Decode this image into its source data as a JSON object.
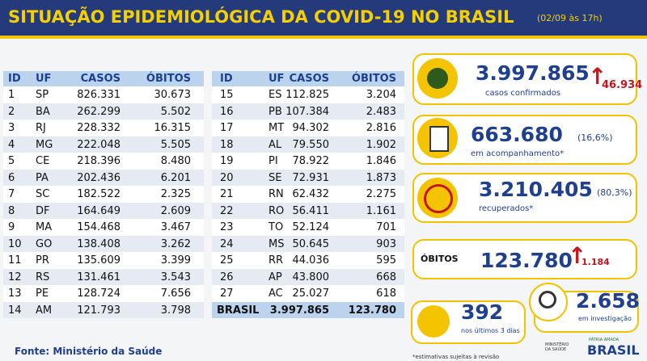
{
  "header": {
    "title": "SITUAÇÃO EPIDEMIOLÓGICA DA COVID-19 NO BRASIL",
    "date": "(02/09 às 17h)"
  },
  "table": {
    "columns": [
      "ID",
      "UF",
      "CASOS",
      "ÓBITOS"
    ],
    "left_rows": [
      [
        "1",
        "SP",
        "826.331",
        "30.673"
      ],
      [
        "2",
        "BA",
        "262.299",
        "5.502"
      ],
      [
        "3",
        "RJ",
        "228.332",
        "16.315"
      ],
      [
        "4",
        "MG",
        "222.048",
        "5.505"
      ],
      [
        "5",
        "CE",
        "218.396",
        "8.480"
      ],
      [
        "6",
        "PA",
        "202.436",
        "6.201"
      ],
      [
        "7",
        "SC",
        "182.522",
        "2.325"
      ],
      [
        "8",
        "DF",
        "164.649",
        "2.609"
      ],
      [
        "9",
        "MA",
        "154.468",
        "3.467"
      ],
      [
        "10",
        "GO",
        "138.408",
        "3.262"
      ],
      [
        "11",
        "PR",
        "135.609",
        "3.399"
      ],
      [
        "12",
        "RS",
        "131.461",
        "3.543"
      ],
      [
        "13",
        "PE",
        "128.724",
        "7.656"
      ],
      [
        "14",
        "AM",
        "121.793",
        "3.798"
      ]
    ],
    "right_rows": [
      [
        "15",
        "ES",
        "112.825",
        "3.204"
      ],
      [
        "16",
        "PB",
        "107.384",
        "2.483"
      ],
      [
        "17",
        "MT",
        "94.302",
        "2.816"
      ],
      [
        "18",
        "AL",
        "79.550",
        "1.902"
      ],
      [
        "19",
        "PI",
        "78.922",
        "1.846"
      ],
      [
        "20",
        "SE",
        "72.931",
        "1.873"
      ],
      [
        "21",
        "RN",
        "62.432",
        "2.275"
      ],
      [
        "22",
        "RO",
        "56.411",
        "1.161"
      ],
      [
        "23",
        "TO",
        "52.124",
        "701"
      ],
      [
        "24",
        "MS",
        "50.645",
        "903"
      ],
      [
        "25",
        "RR",
        "44.036",
        "595"
      ],
      [
        "26",
        "AP",
        "43.800",
        "668"
      ],
      [
        "27",
        "AC",
        "25.027",
        "618"
      ]
    ],
    "total": [
      "BRASIL",
      "3.997.865",
      "123.780"
    ]
  },
  "stats": {
    "confirmed": {
      "value": "3.997.865",
      "label": "casos confirmados",
      "new": "46.934"
    },
    "monitoring": {
      "value": "663.680",
      "percent": "(16,6%)",
      "label": "em acompanhamento*"
    },
    "recovered": {
      "value": "3.210.405",
      "percent": "(80,3%)",
      "label": "recuperados*"
    },
    "deaths": {
      "label": "ÓBITOS",
      "value": "123.780",
      "new": "1.184"
    },
    "recent_deaths": {
      "value": "392",
      "label": "nos últimos 3 dias"
    },
    "investigation": {
      "value": "2.658",
      "label": "em investigação"
    }
  },
  "footer": {
    "source": "Fonte: Ministério da Saúde",
    "note": "*estimativas sujeitas à revisão",
    "ministry": "MINISTÉRIO DA SAÚDE",
    "slogan": "PÁTRIA AMADA",
    "country": "BRASIL"
  }
}
